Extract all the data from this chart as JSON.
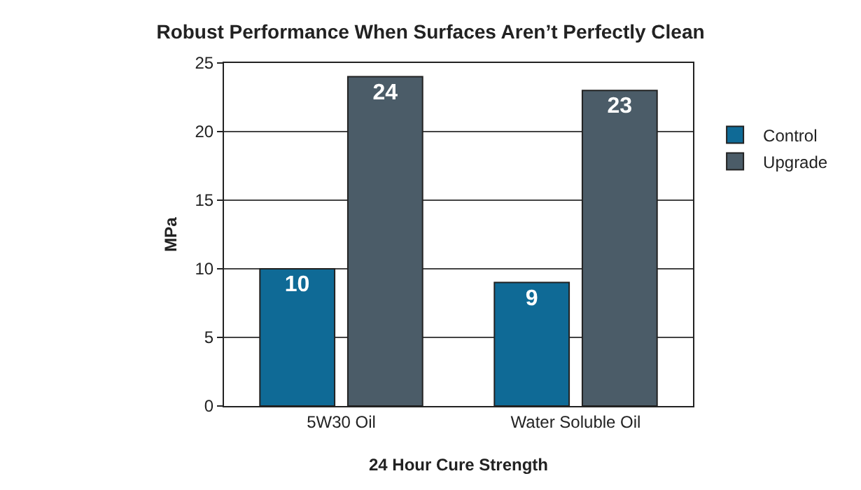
{
  "chart_data": {
    "type": "bar",
    "title": "Robust Performance When Surfaces Aren’t Perfectly Clean",
    "xlabel": "24 Hour Cure Strength",
    "ylabel": "MPa",
    "categories": [
      "5W30 Oil",
      "Water Soluble Oil"
    ],
    "series": [
      {
        "name": "Control",
        "color": "#0f6a96",
        "values": [
          10,
          9
        ]
      },
      {
        "name": "Upgrade",
        "color": "#4b5c68",
        "values": [
          24,
          23
        ]
      }
    ],
    "ylim": [
      0,
      25
    ],
    "yticks": [
      0,
      5,
      10,
      15,
      20,
      25
    ],
    "grid": "y",
    "legend": "right",
    "data_labels": true
  }
}
